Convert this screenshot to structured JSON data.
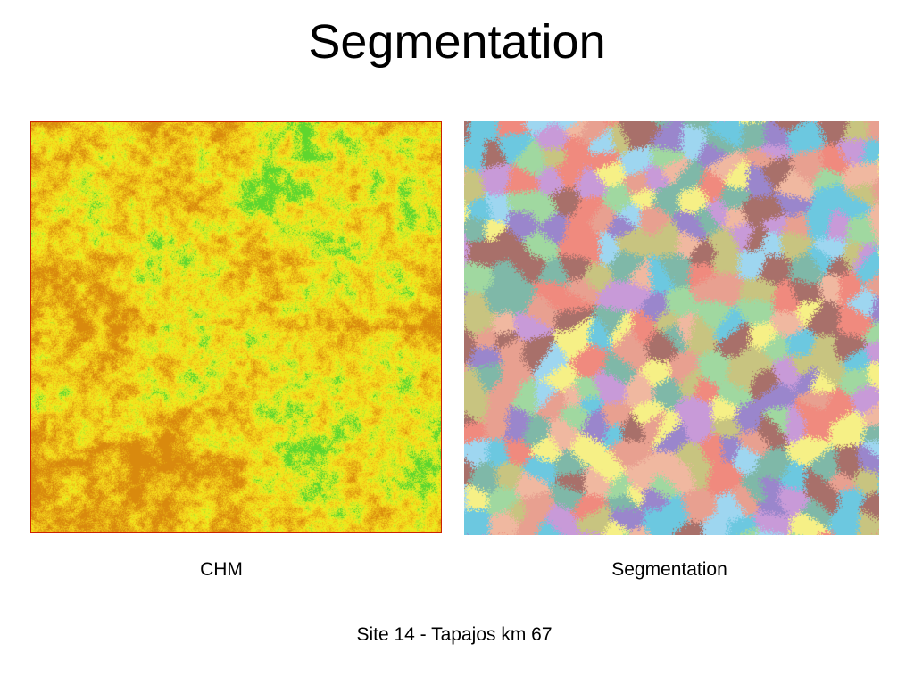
{
  "slide": {
    "title": "Segmentation",
    "footer": "Site 14 - Tapajos km 67"
  },
  "figures": [
    {
      "id": "chm",
      "caption": "CHM",
      "palette": [
        "#d98a0e",
        "#e3a512",
        "#eec21a",
        "#f6dd1c",
        "#e8ef20",
        "#b8e62a",
        "#5fd62e"
      ],
      "border_color": "#cc2200"
    },
    {
      "id": "segmentation",
      "caption": "Segmentation",
      "palette": [
        "#f08a7e",
        "#a8706a",
        "#c89ad8",
        "#9ed6f0",
        "#6cc8e0",
        "#7fb8a8",
        "#c8c480",
        "#f0b8a0",
        "#f6f086",
        "#a0d8a0",
        "#9a86cc",
        "#e8a090"
      ]
    }
  ]
}
